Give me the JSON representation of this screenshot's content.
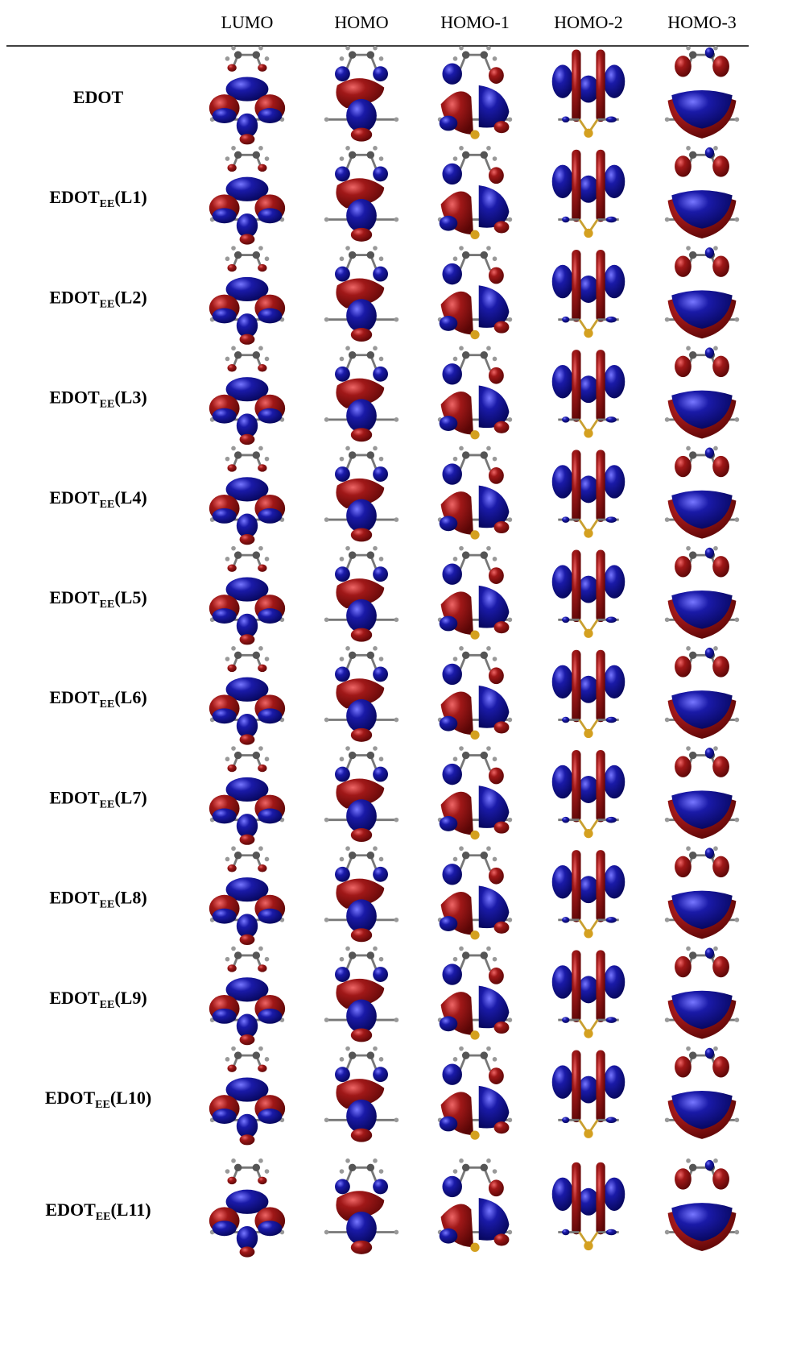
{
  "table": {
    "columns": [
      "LUMO",
      "HOMO",
      "HOMO-1",
      "HOMO-2",
      "HOMO-3"
    ],
    "rows": [
      {
        "base": "EDOT"
      },
      {
        "base": "EDOT",
        "sub": "EE",
        "suffix": "(L1)"
      },
      {
        "base": "EDOT",
        "sub": "EE",
        "suffix": "(L2)"
      },
      {
        "base": "EDOT",
        "sub": "EE",
        "suffix": "(L3)"
      },
      {
        "base": "EDOT",
        "sub": "EE",
        "suffix": "(L4)"
      },
      {
        "base": "EDOT",
        "sub": "EE",
        "suffix": "(L5)"
      },
      {
        "base": "EDOT",
        "sub": "EE",
        "suffix": "(L6)"
      },
      {
        "base": "EDOT",
        "sub": "EE",
        "suffix": "(L7)"
      },
      {
        "base": "EDOT",
        "sub": "EE",
        "suffix": "(L8)"
      },
      {
        "base": "EDOT",
        "sub": "EE",
        "suffix": "(L9)"
      },
      {
        "base": "EDOT",
        "sub": "EE",
        "suffix": "(L10)"
      },
      {
        "base": "EDOT",
        "sub": "EE",
        "suffix": "(L11)"
      }
    ]
  }
}
